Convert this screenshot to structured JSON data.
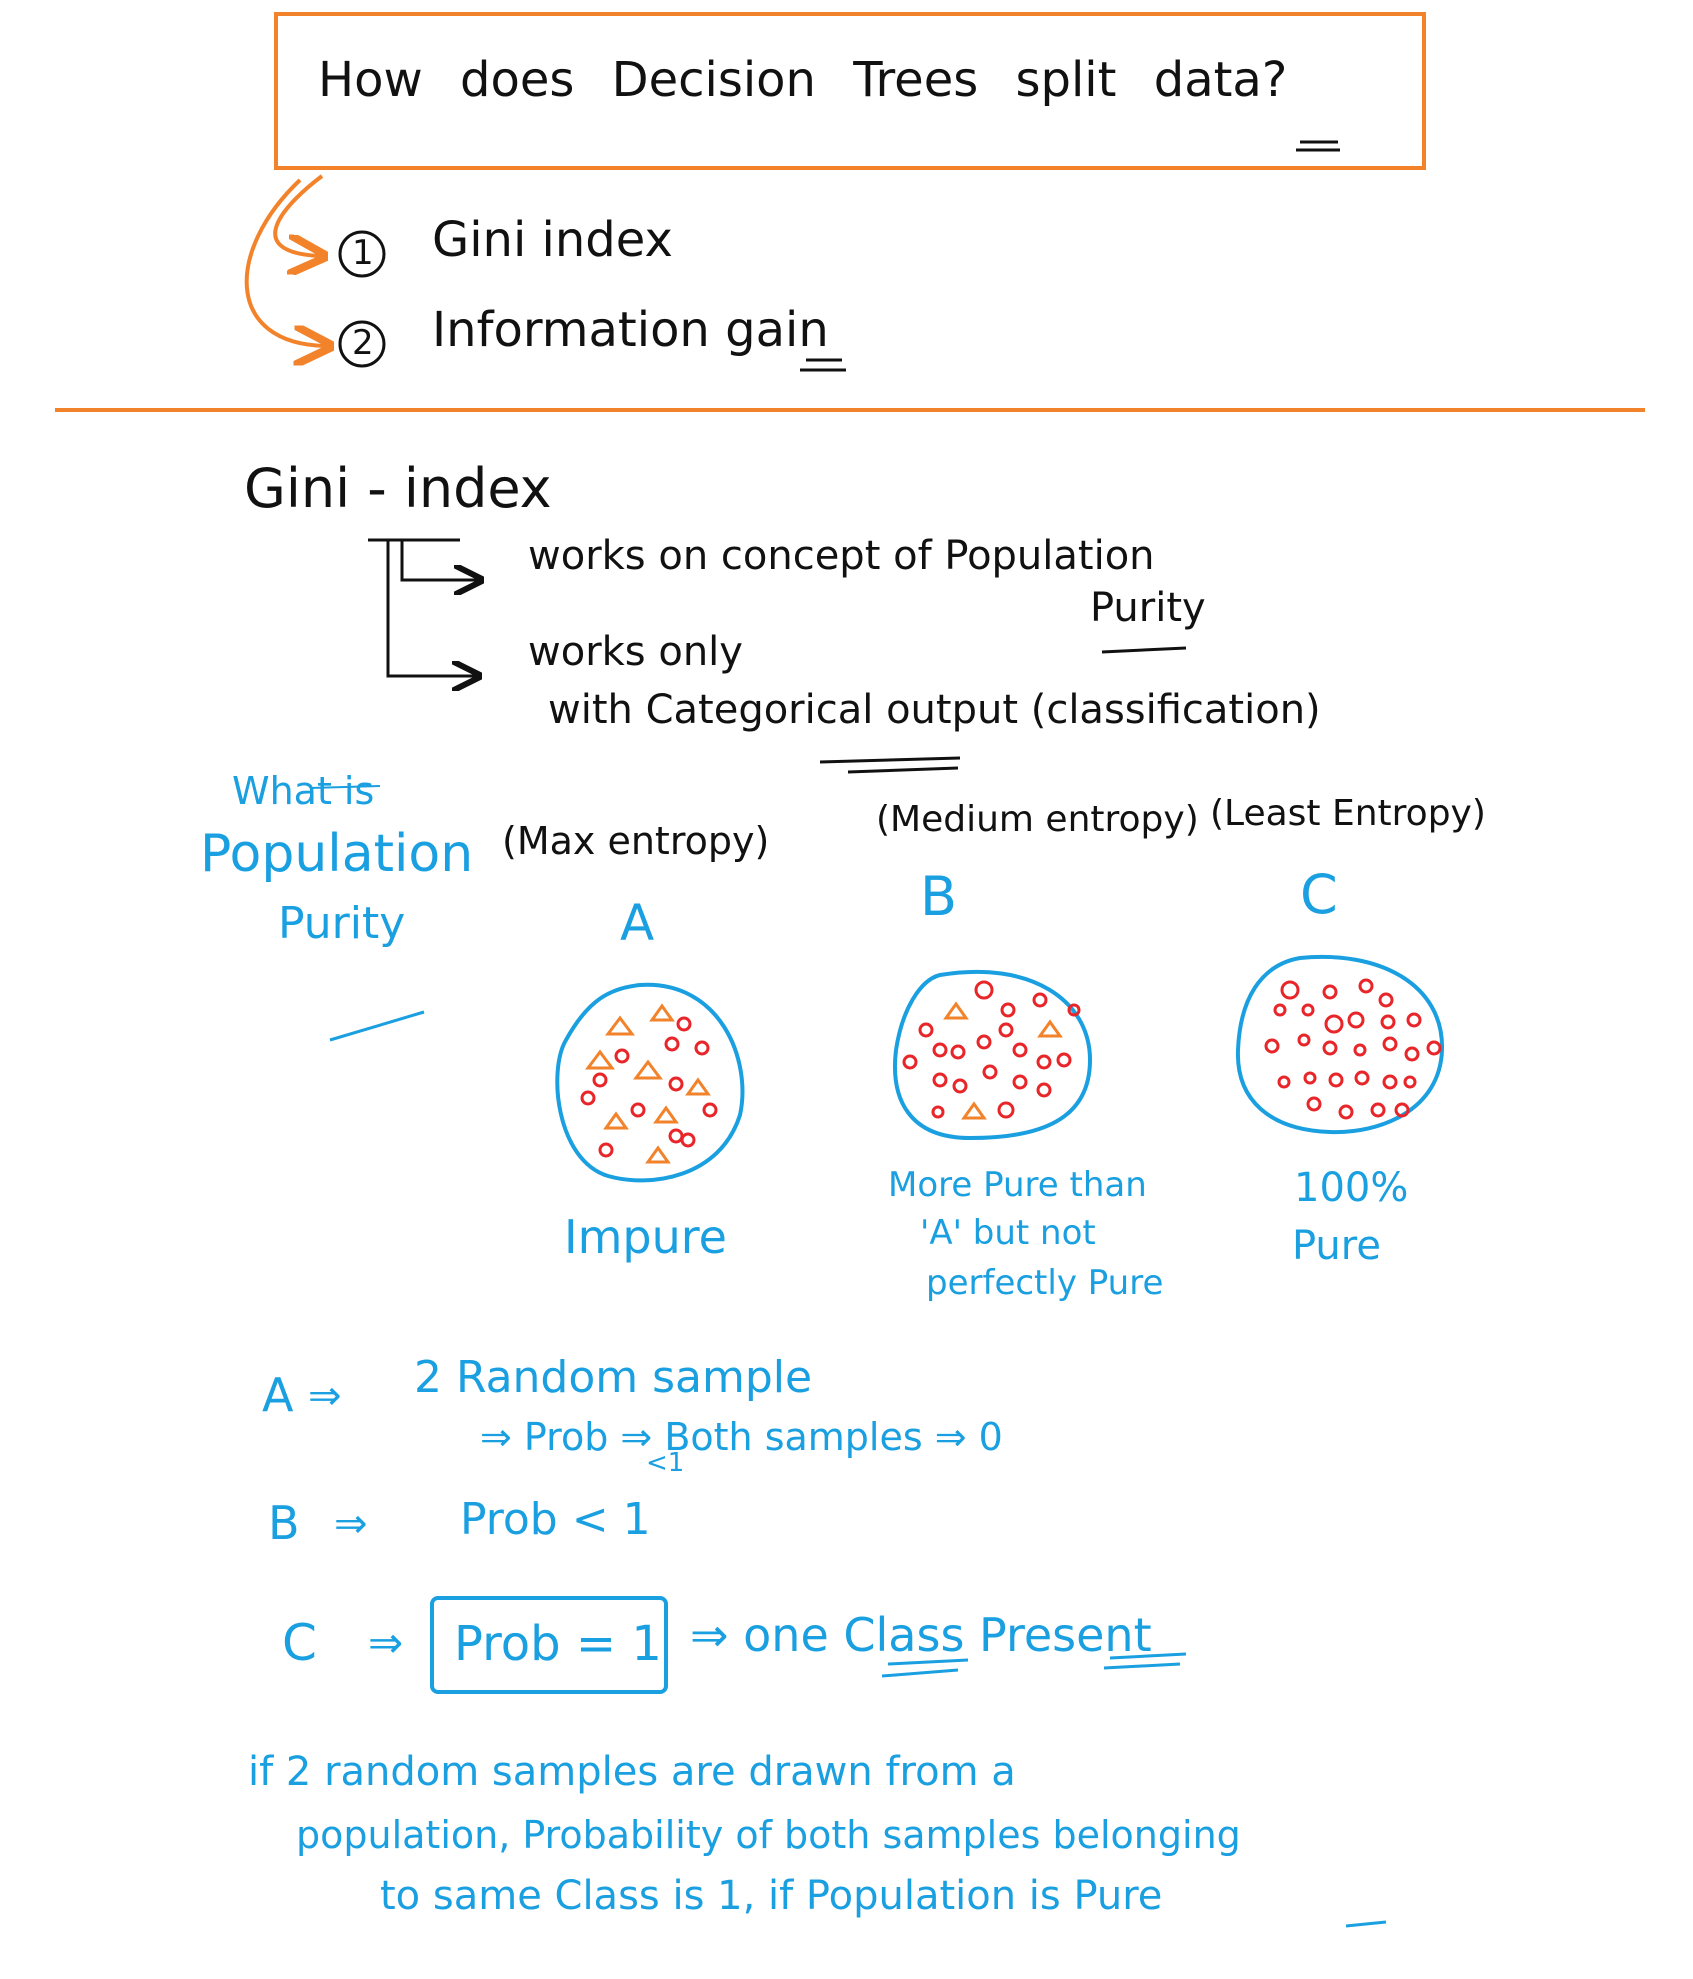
{
  "header": {
    "question": "How does Decision Trees split data?",
    "methods": [
      {
        "number": "1",
        "label": "Gini index"
      },
      {
        "number": "2",
        "label": "Information gain"
      }
    ]
  },
  "gini": {
    "heading": "Gini - index",
    "bullets": [
      {
        "lines": [
          "works on concept of Population",
          "Purity"
        ]
      },
      {
        "lines": [
          "works only",
          "with Categorical output (classification)"
        ]
      }
    ]
  },
  "purity": {
    "side_label": [
      "What is",
      "Population",
      "Purity"
    ],
    "populations": [
      {
        "entropy": "(Max entropy)",
        "letter": "A",
        "caption": [
          "Impure"
        ]
      },
      {
        "entropy": "(Medium entropy)",
        "letter": "B",
        "caption": [
          "More Pure than",
          "'A' but not",
          "perfectly Pure"
        ]
      },
      {
        "entropy": "(Least Entropy)",
        "letter": "C",
        "caption": [
          "100%",
          "Pure"
        ]
      }
    ]
  },
  "sampling": {
    "a": {
      "label": "A",
      "arrow": "⇒",
      "text": "2 Random sample",
      "detail": "⇒ Prob   ⇒ Both samples ⇒ 0",
      "sub": "<1"
    },
    "b": {
      "label": "B",
      "arrow": "⇒",
      "text": "Prob < 1"
    },
    "c": {
      "label": "C",
      "arrow": "⇒",
      "boxed": "Prob = 1",
      "result": "⇒ one Class Present"
    }
  },
  "conclusion": [
    "if 2 random samples are drawn from a",
    "population, Probability of both samples belonging",
    "to same Class is 1, if Population is Pure"
  ],
  "colors": {
    "accent": "#f2832b",
    "ink": "#111111",
    "blue": "#1a9fe0",
    "red": "#e8262a"
  }
}
